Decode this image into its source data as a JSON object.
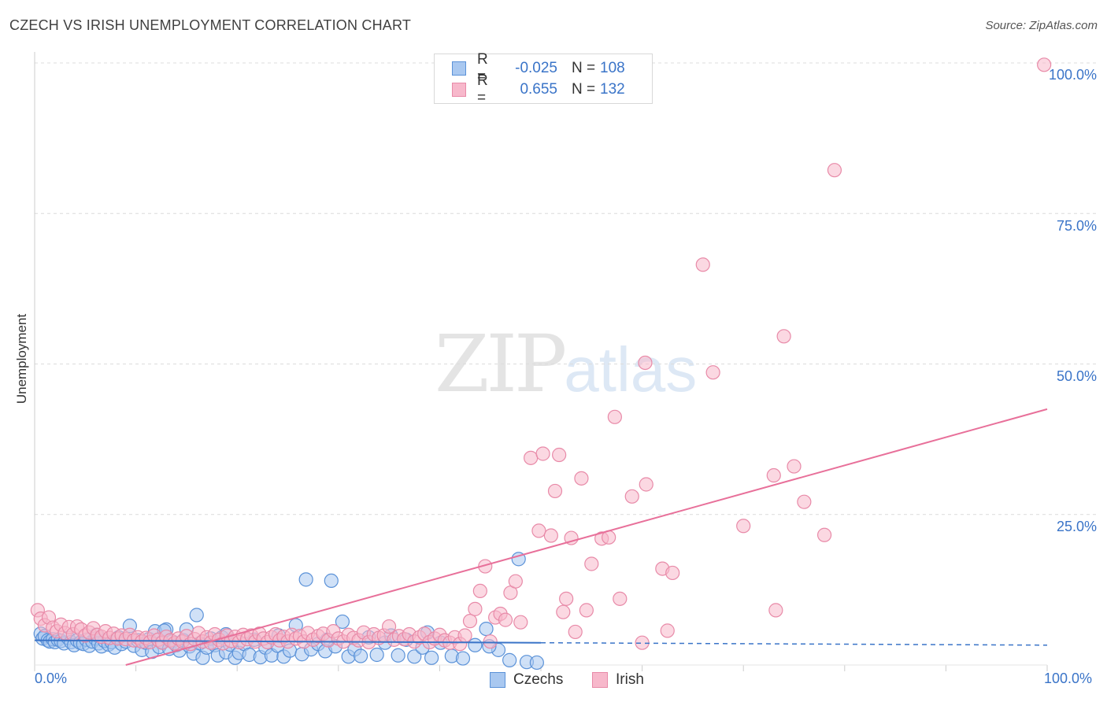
{
  "title": "CZECH VS IRISH UNEMPLOYMENT CORRELATION CHART",
  "source": "Source: ZipAtlas.com",
  "watermark": {
    "zip": "ZIP",
    "atlas": "atlas"
  },
  "stats": [
    {
      "r_label": "R =",
      "r": "-0.025",
      "n_label": "N =",
      "n": "108"
    },
    {
      "r_label": "R =",
      "r": "0.655",
      "n_label": "N =",
      "n": "132"
    }
  ],
  "colors": {
    "czech_fill": "#a9c8f0",
    "czech_stroke": "#5b92d8",
    "czech_line": "#3a74c8",
    "irish_fill": "#f7b8cb",
    "irish_stroke": "#e88aa8",
    "irish_line": "#e8709a",
    "tick_text": "#3a74c8",
    "grid": "#dcdcdc"
  },
  "chart_data": {
    "type": "scatter",
    "title": "CZECH VS IRISH UNEMPLOYMENT CORRELATION CHART",
    "xlabel": "",
    "ylabel": "Unemployment",
    "xlim": [
      0,
      100
    ],
    "ylim": [
      0,
      100
    ],
    "x_tick_labels": [
      "0.0%",
      "100.0%"
    ],
    "y_ticks": [
      25,
      50,
      75,
      100
    ],
    "y_tick_labels": [
      "25.0%",
      "50.0%",
      "75.0%",
      "100.0%"
    ],
    "grid": true,
    "legend": "bottom-center",
    "series": [
      {
        "name": "Czechs",
        "r": -0.025,
        "n": 108,
        "trend": {
          "x": [
            0,
            50
          ],
          "y": [
            4.1,
            3.7
          ],
          "dashed_to_x": 100,
          "dashed_y": 3.3
        },
        "points": [
          [
            0.6,
            5.2
          ],
          [
            0.8,
            4.4
          ],
          [
            1.0,
            4.8
          ],
          [
            1.3,
            4.1
          ],
          [
            1.5,
            3.9
          ],
          [
            1.8,
            4.3
          ],
          [
            2.0,
            3.8
          ],
          [
            2.3,
            4.2
          ],
          [
            2.6,
            4.0
          ],
          [
            2.9,
            3.6
          ],
          [
            3.3,
            4.5
          ],
          [
            3.6,
            3.8
          ],
          [
            3.9,
            3.3
          ],
          [
            4.2,
            4.1
          ],
          [
            4.5,
            3.7
          ],
          [
            4.8,
            3.5
          ],
          [
            5.1,
            4.2
          ],
          [
            5.4,
            3.2
          ],
          [
            5.7,
            3.9
          ],
          [
            6.0,
            4.4
          ],
          [
            6.3,
            3.6
          ],
          [
            6.6,
            3.1
          ],
          [
            6.9,
            4.0
          ],
          [
            7.3,
            3.4
          ],
          [
            7.6,
            3.8
          ],
          [
            7.9,
            2.9
          ],
          [
            8.3,
            4.6
          ],
          [
            8.6,
            3.5
          ],
          [
            9.0,
            3.9
          ],
          [
            9.4,
            6.5
          ],
          [
            9.8,
            3.2
          ],
          [
            10.2,
            4.1
          ],
          [
            10.6,
            2.5
          ],
          [
            11.0,
            3.7
          ],
          [
            11.3,
            4.3
          ],
          [
            11.6,
            2.2
          ],
          [
            11.9,
            5.6
          ],
          [
            12.3,
            3.0
          ],
          [
            12.6,
            3.8
          ],
          [
            13.0,
            5.9
          ],
          [
            13.3,
            2.7
          ],
          [
            13.6,
            3.9
          ],
          [
            14.0,
            3.3
          ],
          [
            14.3,
            2.4
          ],
          [
            14.7,
            4.1
          ],
          [
            15.0,
            5.9
          ],
          [
            15.3,
            3.1
          ],
          [
            15.7,
            1.9
          ],
          [
            16.0,
            8.3
          ],
          [
            16.3,
            3.6
          ],
          [
            16.6,
            1.2
          ],
          [
            17.0,
            2.9
          ],
          [
            17.4,
            4.4
          ],
          [
            17.8,
            3.3
          ],
          [
            18.1,
            1.6
          ],
          [
            18.5,
            4.6
          ],
          [
            18.9,
            2.1
          ],
          [
            19.3,
            3.4
          ],
          [
            19.8,
            1.2
          ],
          [
            20.2,
            2.0
          ],
          [
            20.7,
            3.5
          ],
          [
            21.2,
            1.7
          ],
          [
            21.7,
            4.2
          ],
          [
            22.3,
            1.3
          ],
          [
            22.8,
            2.9
          ],
          [
            23.4,
            1.6
          ],
          [
            24.0,
            3.2
          ],
          [
            24.6,
            1.4
          ],
          [
            25.2,
            2.4
          ],
          [
            25.8,
            6.6
          ],
          [
            26.4,
            1.8
          ],
          [
            26.8,
            14.2
          ],
          [
            27.3,
            2.6
          ],
          [
            28.0,
            3.5
          ],
          [
            28.7,
            2.3
          ],
          [
            29.3,
            14.0
          ],
          [
            29.7,
            3.1
          ],
          [
            30.4,
            7.2
          ],
          [
            31.0,
            1.4
          ],
          [
            31.6,
            2.6
          ],
          [
            32.2,
            1.5
          ],
          [
            33.0,
            4.6
          ],
          [
            33.8,
            1.7
          ],
          [
            34.6,
            3.7
          ],
          [
            35.2,
            4.9
          ],
          [
            35.9,
            1.6
          ],
          [
            36.7,
            4.2
          ],
          [
            37.5,
            1.4
          ],
          [
            38.3,
            2.9
          ],
          [
            39.2,
            1.2
          ],
          [
            40.1,
            3.7
          ],
          [
            41.2,
            1.5
          ],
          [
            42.3,
            1.1
          ],
          [
            43.5,
            3.3
          ],
          [
            44.6,
            6.0
          ],
          [
            45.8,
            2.5
          ],
          [
            46.9,
            0.8
          ],
          [
            47.8,
            17.6
          ],
          [
            48.6,
            0.5
          ],
          [
            49.6,
            0.4
          ],
          [
            6.1,
            5.0
          ],
          [
            12.8,
            5.7
          ],
          [
            18.9,
            5.1
          ],
          [
            24.1,
            4.9
          ],
          [
            28.9,
            4.2
          ],
          [
            38.8,
            5.4
          ],
          [
            44.9,
            3.1
          ]
        ]
      },
      {
        "name": "Irish",
        "r": 0.655,
        "n": 132,
        "trend": {
          "x": [
            9,
            100
          ],
          "y": [
            0,
            42.5
          ]
        },
        "points": [
          [
            0.3,
            9.1
          ],
          [
            0.6,
            7.7
          ],
          [
            1.0,
            6.6
          ],
          [
            1.4,
            7.9
          ],
          [
            1.8,
            6.2
          ],
          [
            2.2,
            5.6
          ],
          [
            2.6,
            6.7
          ],
          [
            3.0,
            5.3
          ],
          [
            3.4,
            6.3
          ],
          [
            3.8,
            5.1
          ],
          [
            4.2,
            6.4
          ],
          [
            4.6,
            5.9
          ],
          [
            5.0,
            4.9
          ],
          [
            5.4,
            5.4
          ],
          [
            5.8,
            6.1
          ],
          [
            6.2,
            5.0
          ],
          [
            6.6,
            4.7
          ],
          [
            7.0,
            5.6
          ],
          [
            7.4,
            4.5
          ],
          [
            7.8,
            5.2
          ],
          [
            8.2,
            4.4
          ],
          [
            8.6,
            4.9
          ],
          [
            9.0,
            4.3
          ],
          [
            9.4,
            5.0
          ],
          [
            9.8,
            4.1
          ],
          [
            10.2,
            4.6
          ],
          [
            10.6,
            3.9
          ],
          [
            11.0,
            4.5
          ],
          [
            11.4,
            3.8
          ],
          [
            11.8,
            4.9
          ],
          [
            12.2,
            4.2
          ],
          [
            12.6,
            3.7
          ],
          [
            13.0,
            4.7
          ],
          [
            13.4,
            4.1
          ],
          [
            13.8,
            3.6
          ],
          [
            14.2,
            4.4
          ],
          [
            14.6,
            3.9
          ],
          [
            15.0,
            4.8
          ],
          [
            15.4,
            3.5
          ],
          [
            15.8,
            4.3
          ],
          [
            16.2,
            5.3
          ],
          [
            16.6,
            3.9
          ],
          [
            17.0,
            4.6
          ],
          [
            17.4,
            3.7
          ],
          [
            17.8,
            5.1
          ],
          [
            18.2,
            4.2
          ],
          [
            18.6,
            3.6
          ],
          [
            19.0,
            4.9
          ],
          [
            19.4,
            4.0
          ],
          [
            19.8,
            4.7
          ],
          [
            20.2,
            3.8
          ],
          [
            20.6,
            5.0
          ],
          [
            21.0,
            4.3
          ],
          [
            21.4,
            4.9
          ],
          [
            21.8,
            3.9
          ],
          [
            22.2,
            5.2
          ],
          [
            22.6,
            4.4
          ],
          [
            23.0,
            3.8
          ],
          [
            23.4,
            4.6
          ],
          [
            23.8,
            5.1
          ],
          [
            24.2,
            4.1
          ],
          [
            24.6,
            4.7
          ],
          [
            25.0,
            3.9
          ],
          [
            25.4,
            5.0
          ],
          [
            25.8,
            4.4
          ],
          [
            26.2,
            4.8
          ],
          [
            26.6,
            3.9
          ],
          [
            27.0,
            5.3
          ],
          [
            27.5,
            4.2
          ],
          [
            28.0,
            4.8
          ],
          [
            28.5,
            5.2
          ],
          [
            29.0,
            4.1
          ],
          [
            29.5,
            5.6
          ],
          [
            30.0,
            4.4
          ],
          [
            30.5,
            3.9
          ],
          [
            31.0,
            5.0
          ],
          [
            31.5,
            4.5
          ],
          [
            32.0,
            4.1
          ],
          [
            32.5,
            5.4
          ],
          [
            33.0,
            3.8
          ],
          [
            33.5,
            5.1
          ],
          [
            34.0,
            4.5
          ],
          [
            34.5,
            4.9
          ],
          [
            35.0,
            6.4
          ],
          [
            35.5,
            4.2
          ],
          [
            36.0,
            4.8
          ],
          [
            36.5,
            4.3
          ],
          [
            37.0,
            5.1
          ],
          [
            37.5,
            3.9
          ],
          [
            38.0,
            4.6
          ],
          [
            38.5,
            5.2
          ],
          [
            39.0,
            3.8
          ],
          [
            39.5,
            4.4
          ],
          [
            40.0,
            5.0
          ],
          [
            40.5,
            4.1
          ],
          [
            41.0,
            3.7
          ],
          [
            41.5,
            4.6
          ],
          [
            42.0,
            3.5
          ],
          [
            42.5,
            4.9
          ],
          [
            43.0,
            7.3
          ],
          [
            43.5,
            9.3
          ],
          [
            44.0,
            12.3
          ],
          [
            44.5,
            16.4
          ],
          [
            45.0,
            3.9
          ],
          [
            45.5,
            7.9
          ],
          [
            46.0,
            8.5
          ],
          [
            46.5,
            7.5
          ],
          [
            47.0,
            12.0
          ],
          [
            47.5,
            13.9
          ],
          [
            48.0,
            7.1
          ],
          [
            49.0,
            34.4
          ],
          [
            49.8,
            22.3
          ],
          [
            50.2,
            35.1
          ],
          [
            51.0,
            21.5
          ],
          [
            51.4,
            28.9
          ],
          [
            51.8,
            34.9
          ],
          [
            52.2,
            8.8
          ],
          [
            52.5,
            11.0
          ],
          [
            53.0,
            21.1
          ],
          [
            53.4,
            5.5
          ],
          [
            54.0,
            31.0
          ],
          [
            54.5,
            9.1
          ],
          [
            55.0,
            16.8
          ],
          [
            56.0,
            21.0
          ],
          [
            56.7,
            21.2
          ],
          [
            57.3,
            41.2
          ],
          [
            57.8,
            11.0
          ],
          [
            59.0,
            28.0
          ],
          [
            60.0,
            3.7
          ],
          [
            60.4,
            30.0
          ],
          [
            62.0,
            16.0
          ],
          [
            62.5,
            5.7
          ],
          [
            63.0,
            15.3
          ],
          [
            60.3,
            50.2
          ],
          [
            66.0,
            66.5
          ],
          [
            67.0,
            48.6
          ],
          [
            70.0,
            23.1
          ],
          [
            73.0,
            31.5
          ],
          [
            73.2,
            9.1
          ],
          [
            74.0,
            54.6
          ],
          [
            75.0,
            33.0
          ],
          [
            76.0,
            27.1
          ],
          [
            78.0,
            21.6
          ],
          [
            79.0,
            82.2
          ],
          [
            99.7,
            99.7
          ]
        ]
      }
    ]
  }
}
